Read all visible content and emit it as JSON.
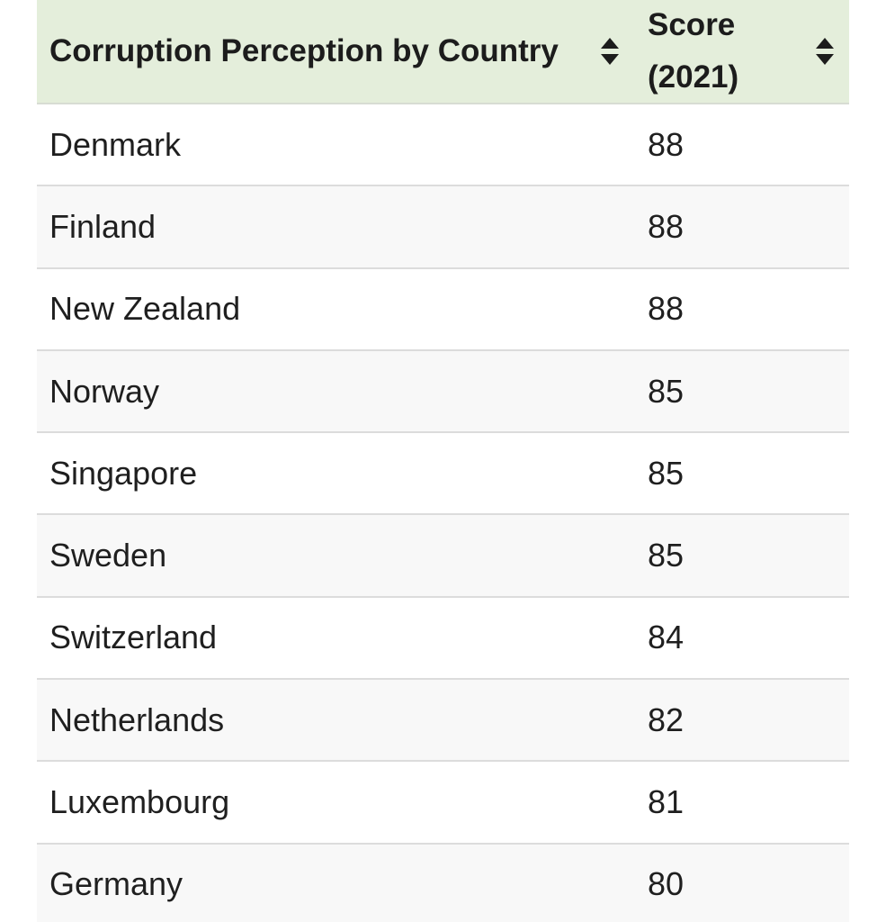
{
  "table": {
    "headers": {
      "country": "Corruption Perception by Country",
      "score": "Score (2021)"
    },
    "icons": {
      "sort": "sort-icon"
    },
    "colors": {
      "header_bg": "#e4eedb",
      "row_alt_bg": "#f8f8f8"
    },
    "rows": [
      {
        "country": "Denmark",
        "score": "88"
      },
      {
        "country": "Finland",
        "score": "88"
      },
      {
        "country": "New Zealand",
        "score": "88"
      },
      {
        "country": "Norway",
        "score": "85"
      },
      {
        "country": "Singapore",
        "score": "85"
      },
      {
        "country": "Sweden",
        "score": "85"
      },
      {
        "country": "Switzerland",
        "score": "84"
      },
      {
        "country": "Netherlands",
        "score": "82"
      },
      {
        "country": "Luxembourg",
        "score": "81"
      },
      {
        "country": "Germany",
        "score": "80"
      }
    ]
  }
}
